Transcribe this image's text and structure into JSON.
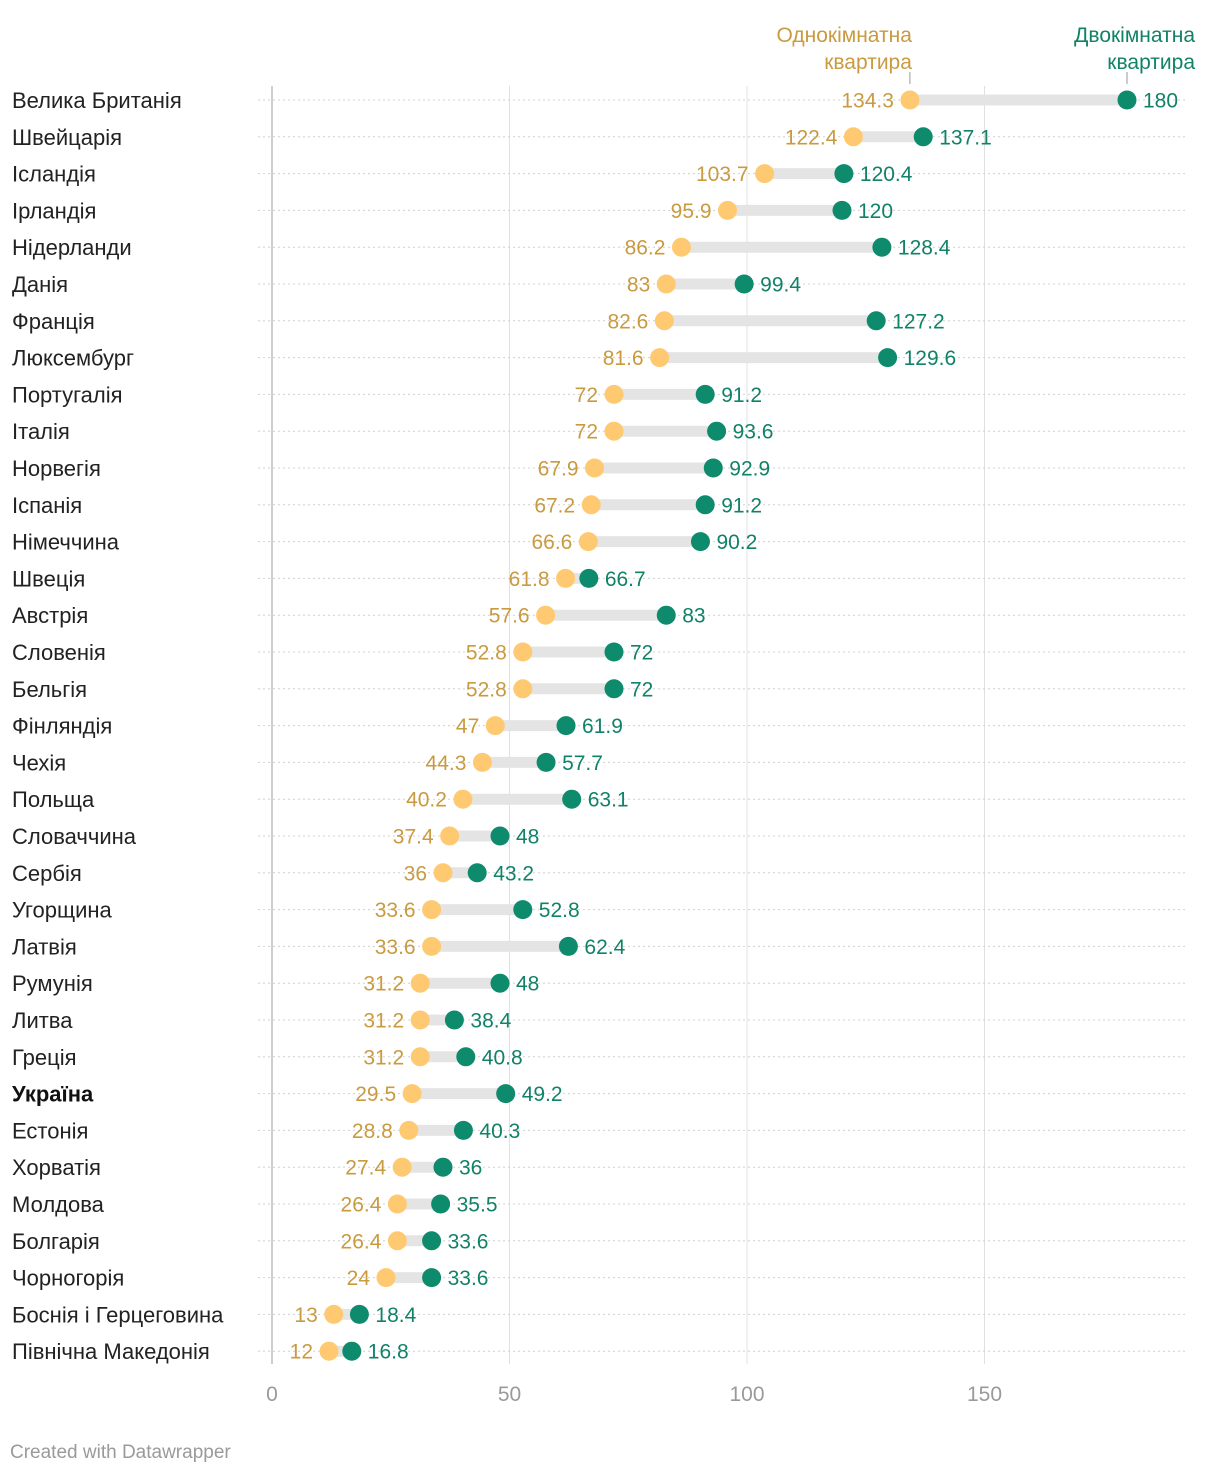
{
  "chart_data": {
    "type": "dot-range",
    "xlim": [
      0,
      190
    ],
    "x_ticks": [
      0,
      50,
      100,
      150
    ],
    "series": [
      {
        "key": "one",
        "name": "Однокімнатна квартира",
        "color": "#ffc971",
        "label_color": "#c99a3f"
      },
      {
        "key": "two",
        "name": "Двокімнатна квартира",
        "color": "#0e8a6c",
        "label_color": "#118268"
      }
    ],
    "legend": {
      "one": [
        "Однокімнатна",
        "квартира"
      ],
      "two": [
        "Двокімнатна",
        "квартира"
      ]
    },
    "highlight": "Україна",
    "rows": [
      {
        "country": "Велика Британія",
        "one": 134.3,
        "two": 180
      },
      {
        "country": "Швейцарія",
        "one": 122.4,
        "two": 137.1
      },
      {
        "country": "Ісландія",
        "one": 103.7,
        "two": 120.4
      },
      {
        "country": "Ірландія",
        "one": 95.9,
        "two": 120
      },
      {
        "country": "Нідерланди",
        "one": 86.2,
        "two": 128.4
      },
      {
        "country": "Данія",
        "one": 83,
        "two": 99.4
      },
      {
        "country": "Франція",
        "one": 82.6,
        "two": 127.2
      },
      {
        "country": "Люксембург",
        "one": 81.6,
        "two": 129.6
      },
      {
        "country": "Португалія",
        "one": 72,
        "two": 91.2
      },
      {
        "country": "Італія",
        "one": 72,
        "two": 93.6
      },
      {
        "country": "Норвегія",
        "one": 67.9,
        "two": 92.9
      },
      {
        "country": "Іспанія",
        "one": 67.2,
        "two": 91.2
      },
      {
        "country": "Німеччина",
        "one": 66.6,
        "two": 90.2
      },
      {
        "country": "Швеція",
        "one": 61.8,
        "two": 66.7
      },
      {
        "country": "Австрія",
        "one": 57.6,
        "two": 83
      },
      {
        "country": "Словенія",
        "one": 52.8,
        "two": 72
      },
      {
        "country": "Бельгія",
        "one": 52.8,
        "two": 72
      },
      {
        "country": "Фінляндія",
        "one": 47,
        "two": 61.9
      },
      {
        "country": "Чехія",
        "one": 44.3,
        "two": 57.7
      },
      {
        "country": "Польща",
        "one": 40.2,
        "two": 63.1
      },
      {
        "country": "Словаччина",
        "one": 37.4,
        "two": 48
      },
      {
        "country": "Сербія",
        "one": 36,
        "two": 43.2
      },
      {
        "country": "Угорщина",
        "one": 33.6,
        "two": 52.8
      },
      {
        "country": "Латвія",
        "one": 33.6,
        "two": 62.4
      },
      {
        "country": "Румунія",
        "one": 31.2,
        "two": 48
      },
      {
        "country": "Литва",
        "one": 31.2,
        "two": 38.4
      },
      {
        "country": "Греція",
        "one": 31.2,
        "two": 40.8
      },
      {
        "country": "Україна",
        "one": 29.5,
        "two": 49.2
      },
      {
        "country": "Естонія",
        "one": 28.8,
        "two": 40.3
      },
      {
        "country": "Хорватія",
        "one": 27.4,
        "two": 36
      },
      {
        "country": "Молдова",
        "one": 26.4,
        "two": 35.5
      },
      {
        "country": "Болгарія",
        "one": 26.4,
        "two": 33.6
      },
      {
        "country": "Чорногорія",
        "one": 24,
        "two": 33.6
      },
      {
        "country": "Боснія і Герцеговина",
        "one": 13,
        "two": 18.4
      },
      {
        "country": "Північна Македонія",
        "one": 12,
        "two": 16.8
      }
    ]
  },
  "footer": "Created with Datawrapper"
}
